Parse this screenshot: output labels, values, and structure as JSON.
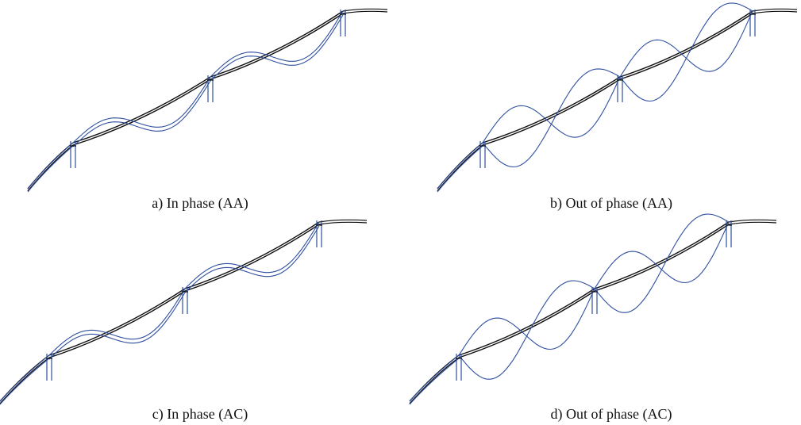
{
  "colors": {
    "deck": "#111111",
    "mode_shape": "#2f4fa0"
  },
  "figure": {
    "panels": [
      {
        "id": "a",
        "caption": "a) In phase (AA)",
        "phase": "in",
        "variant": "AA"
      },
      {
        "id": "b",
        "caption": "b) Out of phase (AA)",
        "phase": "out",
        "variant": "AA"
      },
      {
        "id": "c",
        "caption": "c) In phase (AC)",
        "phase": "in",
        "variant": "AC"
      },
      {
        "id": "d",
        "caption": "d) Out of phase (AC)",
        "phase": "out",
        "variant": "AC"
      }
    ]
  }
}
